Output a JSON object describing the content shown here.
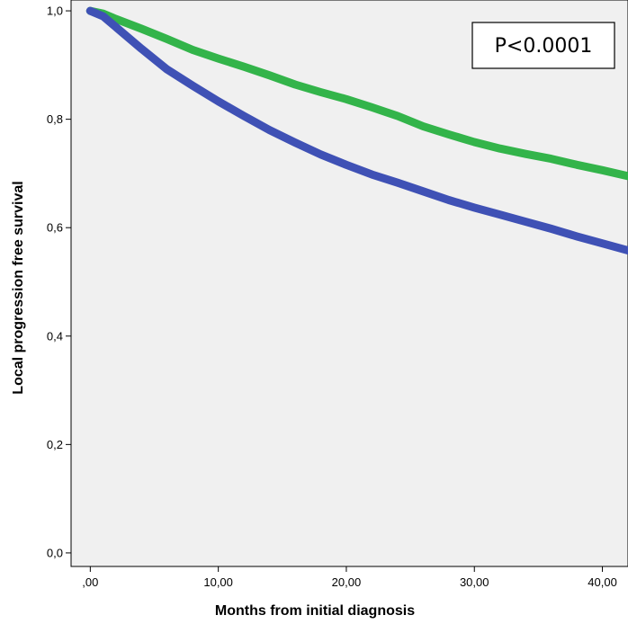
{
  "chart_data": {
    "type": "line",
    "title": "",
    "xlabel": "Months from initial diagnosis",
    "ylabel": "Local  progression free survival",
    "xlim": [
      -1.5,
      42
    ],
    "ylim": [
      -0.025,
      1.02
    ],
    "x_ticks": [
      0,
      10,
      20,
      30,
      40
    ],
    "x_tick_labels": [
      ",00",
      "10,00",
      "20,00",
      "30,00",
      "40,00"
    ],
    "y_ticks": [
      0,
      0.2,
      0.4,
      0.6,
      0.8,
      1.0
    ],
    "y_tick_labels": [
      "0,0",
      "0,2",
      "0,4",
      "0,6",
      "0,8",
      "1,0"
    ],
    "grid": false,
    "annotation": "P<0.0001",
    "series": [
      {
        "color": "#33b44a",
        "x": [
          0,
          1,
          2,
          4,
          6,
          8,
          10,
          12,
          14,
          16,
          18,
          20,
          22,
          24,
          26,
          28,
          30,
          32,
          34,
          36,
          38,
          40,
          42
        ],
        "y": [
          1.0,
          0.995,
          0.985,
          0.967,
          0.948,
          0.928,
          0.912,
          0.897,
          0.881,
          0.864,
          0.85,
          0.837,
          0.822,
          0.806,
          0.787,
          0.772,
          0.758,
          0.746,
          0.736,
          0.727,
          0.716,
          0.706,
          0.695
        ]
      },
      {
        "color": "#3f51b5",
        "x": [
          0,
          1,
          2,
          4,
          6,
          8,
          10,
          12,
          14,
          16,
          18,
          20,
          22,
          24,
          26,
          28,
          30,
          32,
          34,
          36,
          38,
          40,
          42
        ],
        "y": [
          1.0,
          0.99,
          0.97,
          0.93,
          0.892,
          0.862,
          0.833,
          0.806,
          0.78,
          0.757,
          0.735,
          0.716,
          0.698,
          0.683,
          0.667,
          0.651,
          0.637,
          0.624,
          0.611,
          0.598,
          0.584,
          0.571,
          0.558
        ]
      }
    ]
  }
}
